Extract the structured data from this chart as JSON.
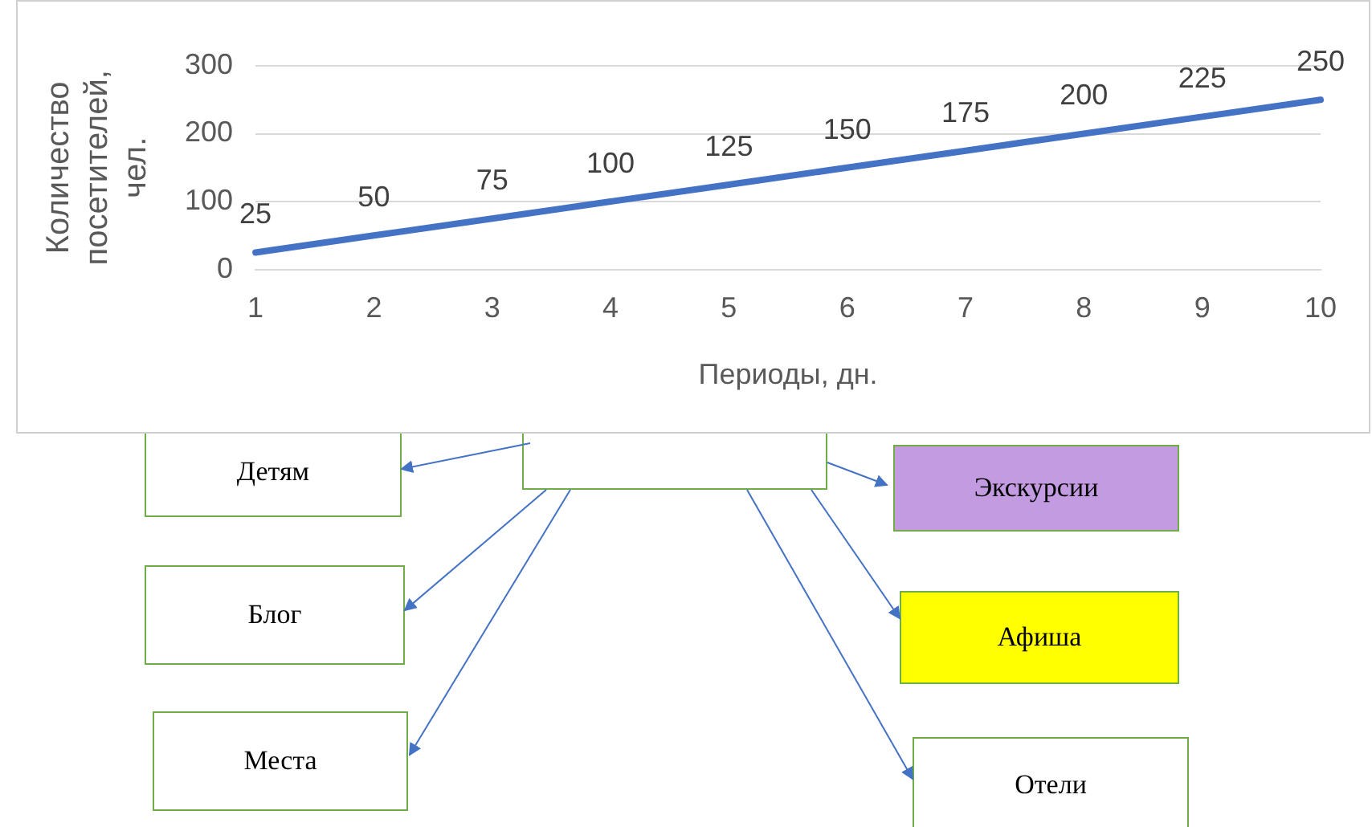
{
  "chart_data": {
    "type": "line",
    "xlabel": "Периоды, дн.",
    "ylabel": "Количество посетителей, чел.",
    "categories": [
      "1",
      "2",
      "3",
      "4",
      "5",
      "6",
      "7",
      "8",
      "9",
      "10"
    ],
    "series": [
      {
        "color": "#4472c4",
        "values": [
          25,
          50,
          75,
          100,
          125,
          150,
          175,
          200,
          225,
          250
        ]
      }
    ],
    "ylim": [
      0,
      300
    ],
    "yticks": [
      0,
      100,
      200,
      300
    ],
    "grid": "y",
    "legend": false,
    "marker": "none",
    "line_style": "solid",
    "data_labels": true,
    "annotations": [
      "Детям",
      "Блог",
      "Места",
      "Экскурсии",
      "Афиша",
      "Отели"
    ]
  }
}
